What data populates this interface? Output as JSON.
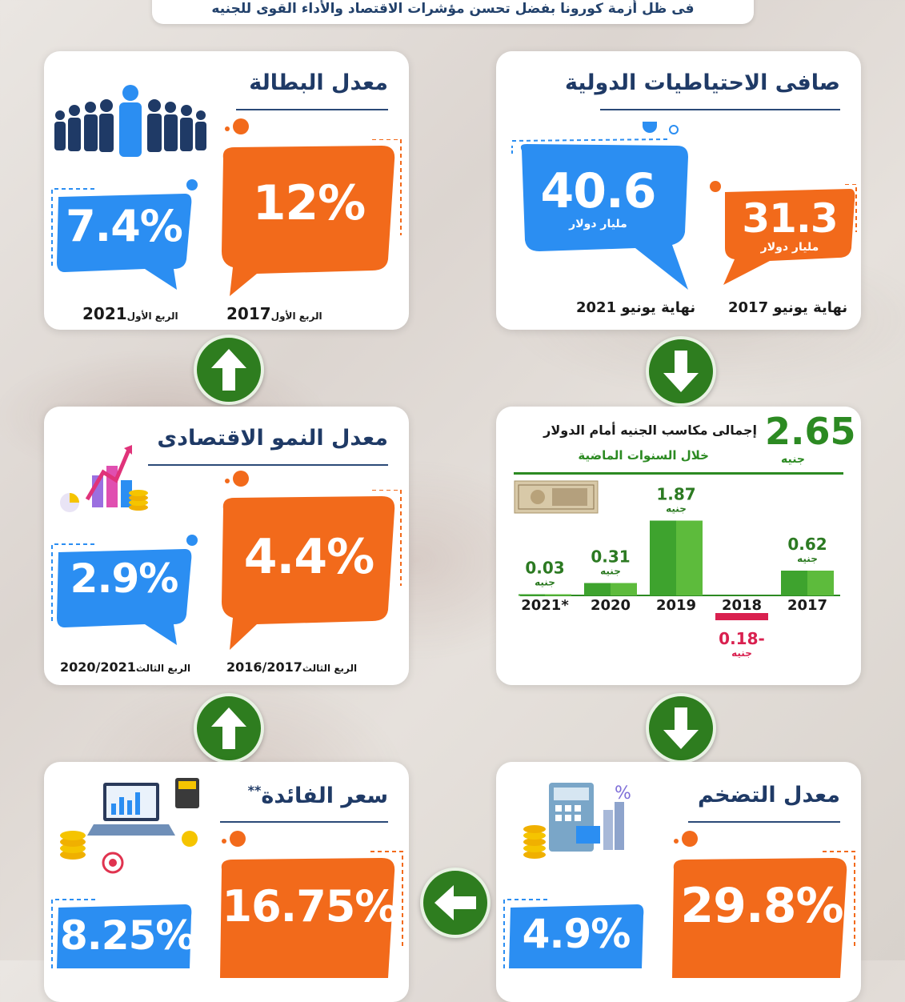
{
  "banner": "فى ظل أزمة كورونا بفضل تحسن مؤشرات الاقتصاد والأداء القوى للجنيه",
  "reserves": {
    "title": "صافى الاحتياطيات الدولية",
    "old": {
      "value": "31.3",
      "unit": "مليار دولار",
      "label": "نهاية يونيو 2017"
    },
    "new": {
      "value": "40.6",
      "unit": "مليار دولار",
      "label": "نهاية يونيو 2021"
    }
  },
  "unemployment": {
    "title": "معدل البطالة",
    "old": {
      "value": "12%",
      "quarter": "الربع الأول",
      "year": "2017"
    },
    "new": {
      "value": "7.4%",
      "quarter": "الربع الأول",
      "year": "2021"
    }
  },
  "pound_gains": {
    "total": "2.65",
    "total_unit": "جنيه",
    "title": "إجمالى مكاسب الجنيه أمام الدولار",
    "subtitle": "خلال السنوات الماضية"
  },
  "chart_data": {
    "type": "bar",
    "title": "إجمالى مكاسب الجنيه أمام الدولار",
    "categories": [
      "2017",
      "2018",
      "2019",
      "2020",
      "2021*"
    ],
    "values": [
      0.62,
      -0.18,
      1.87,
      0.31,
      0.03
    ],
    "value_labels": [
      "0.62",
      "0.18-",
      "1.87",
      "0.31",
      "0.03"
    ],
    "unit": "جنيه"
  },
  "growth": {
    "title": "معدل النمو الاقتصادى",
    "old": {
      "value": "4.4%",
      "quarter": "الربع الثالث",
      "year": "2016/2017"
    },
    "new": {
      "value": "2.9%",
      "quarter": "الربع الثالث",
      "year": "2020/2021"
    }
  },
  "inflation": {
    "title": "معدل التضخم",
    "old": {
      "value": "29.8%"
    },
    "new": {
      "value": "4.9%"
    }
  },
  "interest": {
    "title": "سعر الفائدة",
    "title_mark": "**",
    "old": {
      "value": "16.75%"
    },
    "new": {
      "value": "8.25%"
    }
  },
  "colors": {
    "orange": "#f26a1b",
    "blue": "#2b8ef2",
    "green": "#2e7d1f",
    "navy": "#1f3a66"
  },
  "icons": [
    "people-icon",
    "growth-chart-icon",
    "money-bill-icon",
    "calculator-icon",
    "laptop-coins-icon",
    "arrow-up-icon",
    "arrow-down-icon",
    "arrow-left-icon"
  ]
}
